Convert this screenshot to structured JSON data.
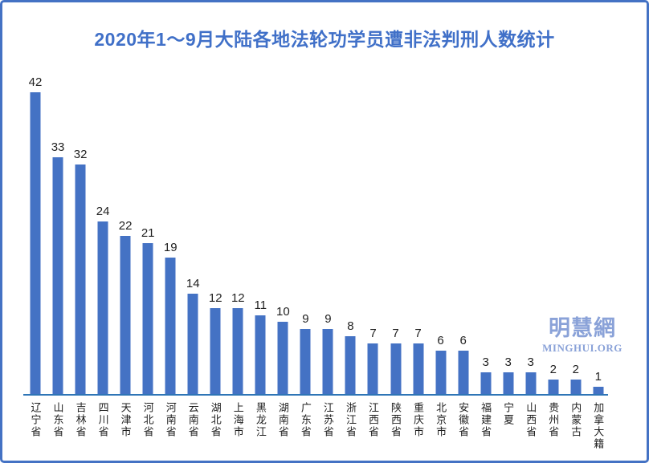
{
  "title": "2020年1～9月大陆各地法轮功学员遭非法判刑人数统计",
  "watermark": {
    "cjk": "明慧網",
    "latin": "MINGHUI.ORG"
  },
  "colors": {
    "bar": "#4472C4",
    "title": "#4070C8",
    "border": "#4472C4",
    "axis_line": "#2E75B6",
    "label": "#1f1f1f",
    "watermark": "#8AA2D8"
  },
  "chart_data": {
    "type": "bar",
    "title": "2020年1～9月大陆各地法轮功学员遭非法判刑人数统计",
    "categories": [
      "辽宁省",
      "山东省",
      "吉林省",
      "四川省",
      "天津市",
      "河北省",
      "河南省",
      "云南省",
      "湖北省",
      "上海市",
      "黑龙江",
      "湖南省",
      "广东省",
      "江苏省",
      "浙江省",
      "江西省",
      "陕西省",
      "重庆市",
      "北京市",
      "安徽省",
      "福建省",
      "宁夏",
      "山西省",
      "贵州省",
      "内蒙古",
      "加拿大籍"
    ],
    "values": [
      42,
      33,
      32,
      24,
      22,
      21,
      19,
      14,
      12,
      12,
      11,
      10,
      9,
      9,
      8,
      7,
      7,
      7,
      6,
      6,
      3,
      3,
      3,
      2,
      2,
      1
    ],
    "xlabel": "",
    "ylabel": "",
    "ylim": [
      0,
      45
    ],
    "data_labels": true,
    "grid": false,
    "legend": false,
    "bar_orientation": "vertical",
    "category_label_orientation": "vertical"
  }
}
